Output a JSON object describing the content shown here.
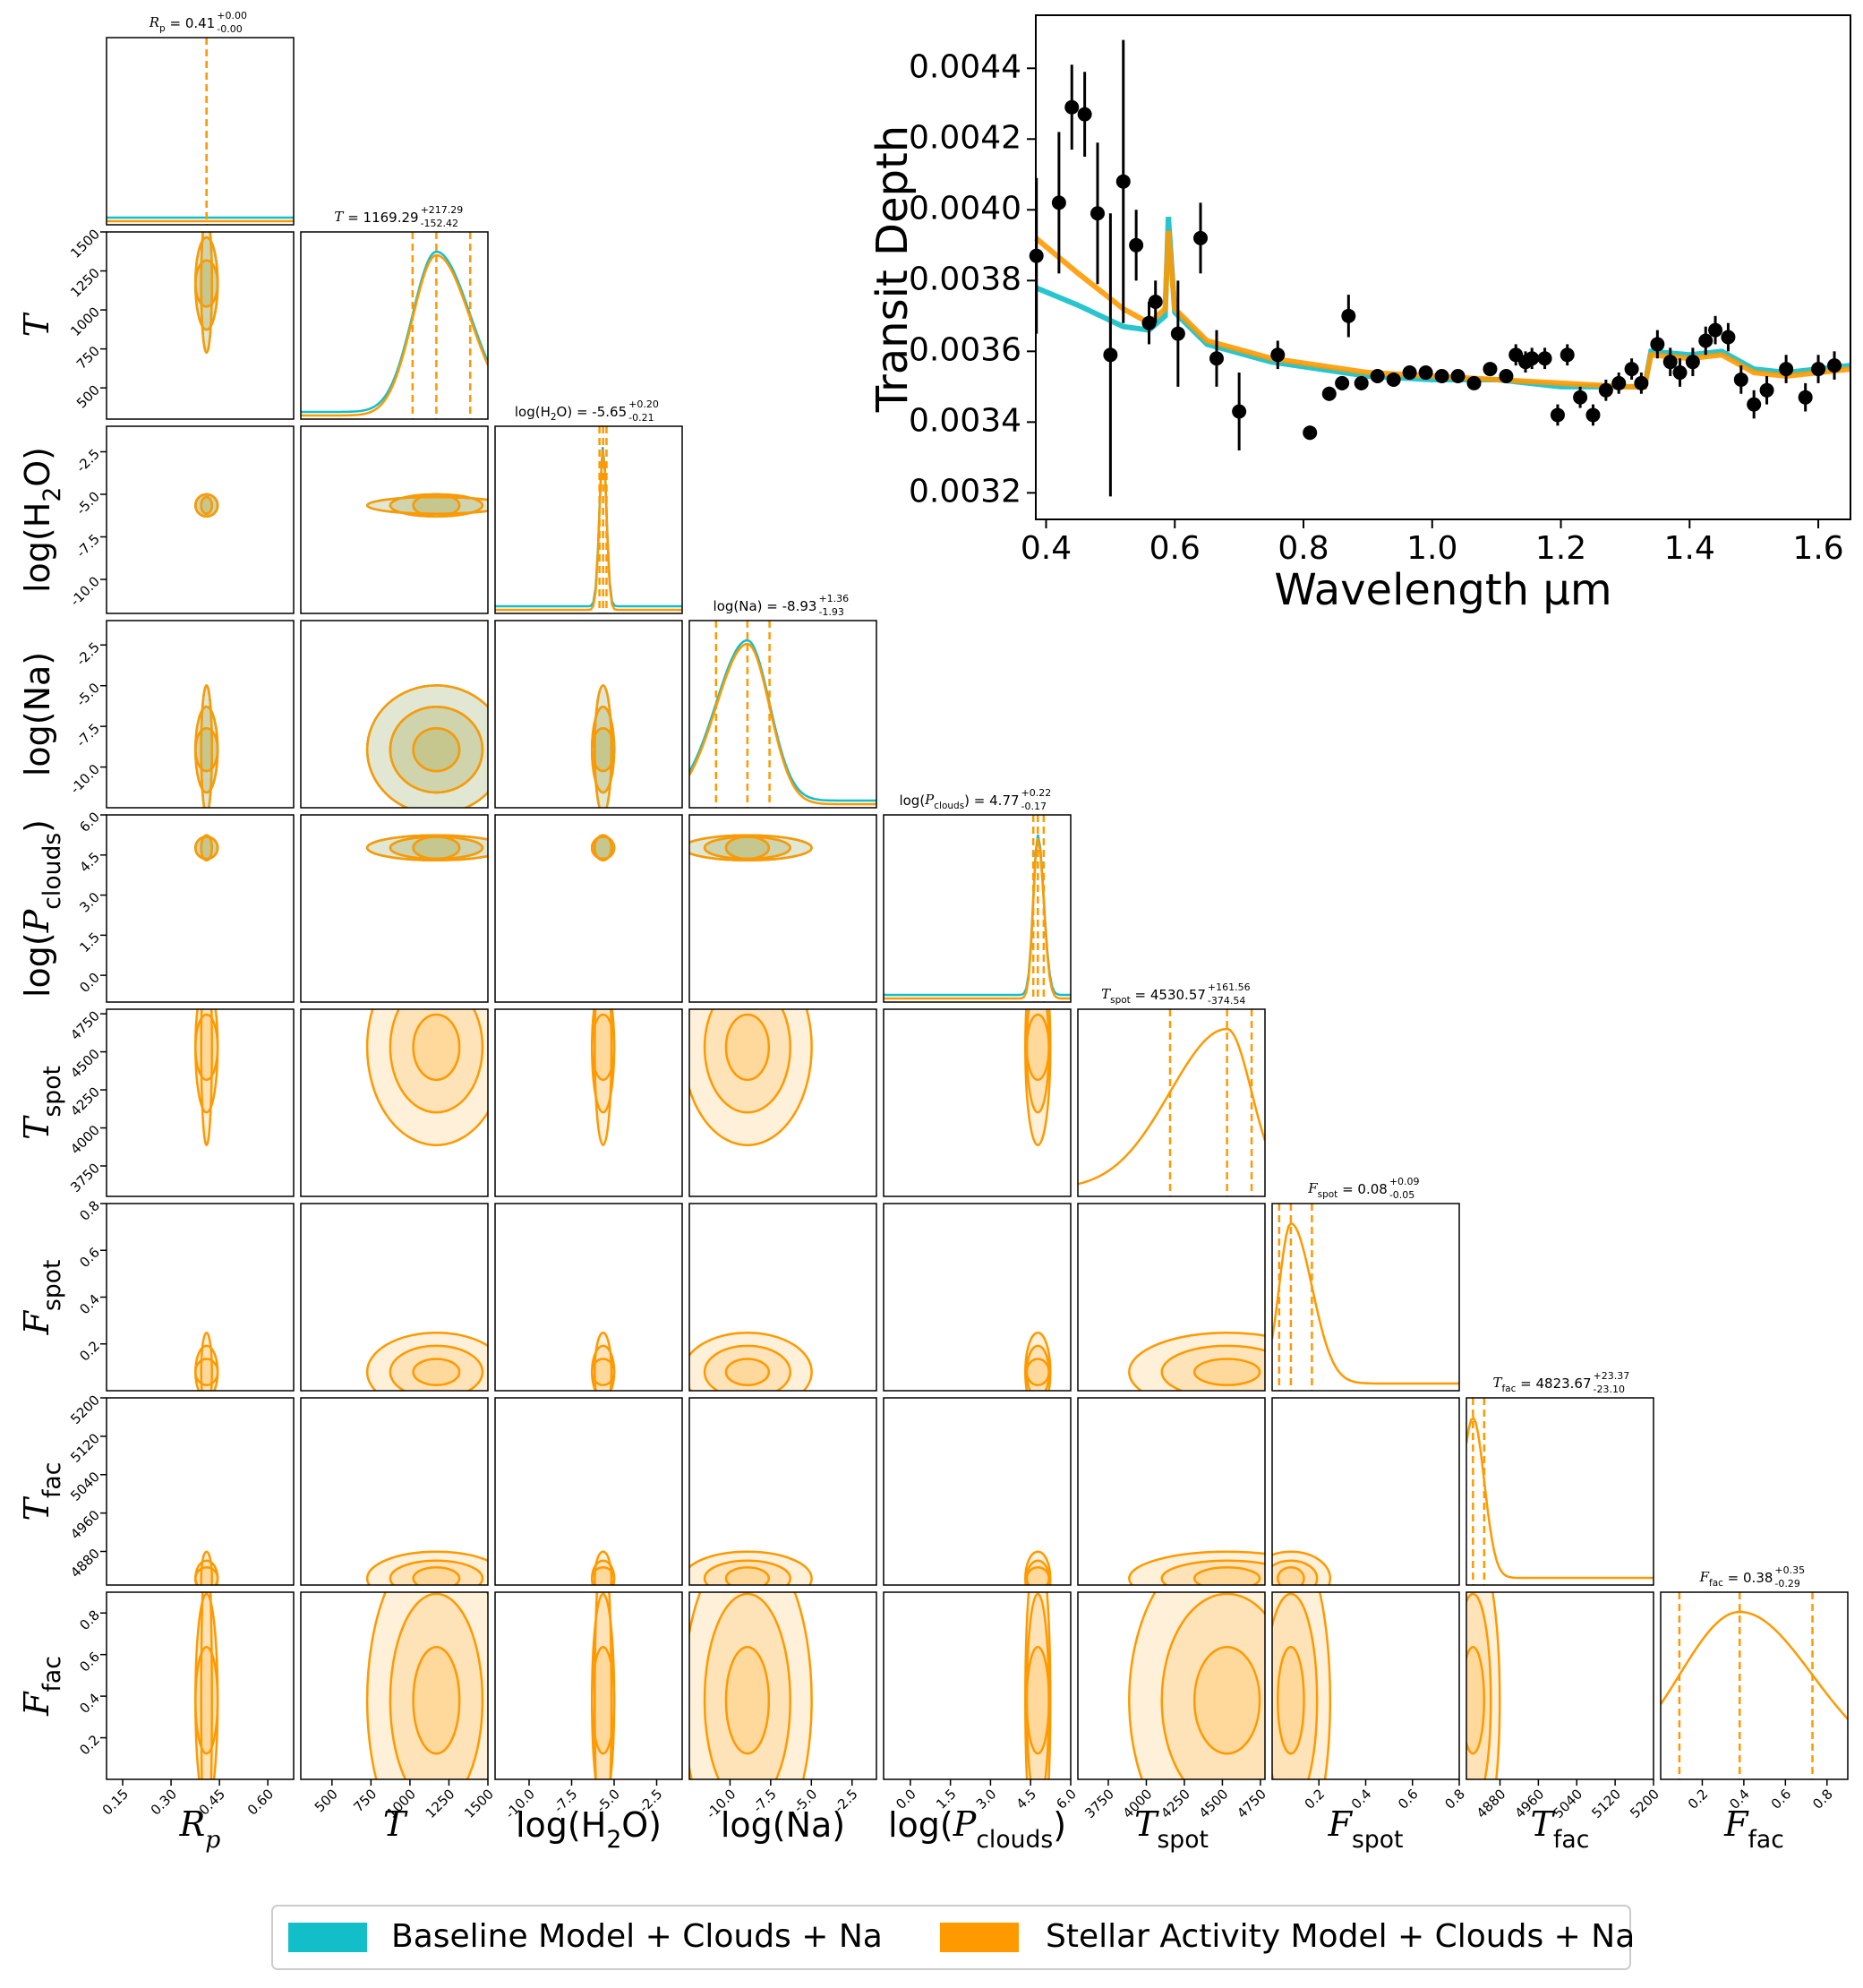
{
  "chart_data": [
    {
      "type": "line",
      "y_label": "Transit Depth",
      "x_label": "Wavelength μm",
      "xlim": [
        0.384,
        1.65
      ],
      "ylim": [
        0.003125,
        0.00455
      ],
      "xticks": [
        0.4,
        0.6,
        0.8,
        {
          "value": 1.0,
          "label": "1.0"
        },
        1.2,
        1.4,
        1.6
      ],
      "yticks": [
        0.0032,
        0.0034,
        0.0036,
        0.0038,
        {
          "value": 0.004,
          "label": "0.0040"
        },
        0.0042,
        0.0044
      ],
      "series": [
        {
          "name": "Baseline Model + Clouds + Na",
          "color": "#12bfc9",
          "x": [
            0.384,
            0.45,
            0.52,
            0.56,
            0.585,
            0.59,
            0.6,
            0.65,
            0.75,
            0.9,
            1.0,
            1.1,
            1.2,
            1.3,
            1.33,
            1.34,
            1.4,
            1.45,
            1.5,
            1.55,
            1.65
          ],
          "values": [
            0.00378,
            0.00373,
            0.00367,
            0.00366,
            0.0037,
            0.00398,
            0.00371,
            0.00362,
            0.00357,
            0.00353,
            0.00352,
            0.00352,
            0.0035,
            0.0035,
            0.0035,
            0.0036,
            0.00359,
            0.0036,
            0.00355,
            0.00354,
            0.00356
          ]
        },
        {
          "name": "Stellar Activity Model + Clouds + Na",
          "color": "#ff9900",
          "x": [
            0.384,
            0.45,
            0.52,
            0.56,
            0.585,
            0.59,
            0.6,
            0.65,
            0.75,
            0.9,
            1.0,
            1.1,
            1.2,
            1.3,
            1.33,
            1.34,
            1.4,
            1.45,
            1.5,
            1.55,
            1.65
          ],
          "values": [
            0.00392,
            0.00382,
            0.00372,
            0.00368,
            0.00372,
            0.00394,
            0.00372,
            0.00363,
            0.00358,
            0.00354,
            0.00353,
            0.00352,
            0.00351,
            0.0035,
            0.0035,
            0.00359,
            0.00358,
            0.00359,
            0.00354,
            0.00353,
            0.00355
          ]
        }
      ],
      "observations": {
        "color": "#000000",
        "x": [
          0.385,
          0.42,
          0.44,
          0.46,
          0.48,
          0.5,
          0.52,
          0.54,
          0.56,
          0.57,
          0.605,
          0.64,
          0.665,
          0.7,
          0.76,
          0.81,
          0.84,
          0.86,
          0.87,
          0.89,
          0.915,
          0.94,
          0.965,
          0.99,
          1.015,
          1.04,
          1.065,
          1.09,
          1.115,
          1.13,
          1.145,
          1.155,
          1.175,
          1.195,
          1.21,
          1.23,
          1.25,
          1.27,
          1.29,
          1.31,
          1.325,
          1.35,
          1.37,
          1.385,
          1.405,
          1.425,
          1.44,
          1.46,
          1.48,
          1.5,
          1.52,
          1.55,
          1.58,
          1.6,
          1.625
        ],
        "values": [
          0.00387,
          0.00402,
          0.00429,
          0.00427,
          0.00399,
          0.00359,
          0.00408,
          0.0039,
          0.00368,
          0.00374,
          0.00365,
          0.00392,
          0.00358,
          0.00343,
          0.00359,
          0.00337,
          0.00348,
          0.00351,
          0.0037,
          0.00351,
          0.00353,
          0.00352,
          0.00354,
          0.00354,
          0.00353,
          0.00353,
          0.00351,
          0.00355,
          0.00353,
          0.00359,
          0.00357,
          0.00358,
          0.00358,
          0.00342,
          0.00359,
          0.00347,
          0.00342,
          0.00349,
          0.00351,
          0.00355,
          0.00351,
          0.00362,
          0.00357,
          0.00354,
          0.00357,
          0.00363,
          0.00366,
          0.00364,
          0.00352,
          0.00345,
          0.00349,
          0.00355,
          0.00347,
          0.00355,
          0.00356
        ],
        "errors": [
          0.00022,
          0.0002,
          0.00012,
          0.00012,
          0.0002,
          0.0004,
          0.0004,
          0.0001,
          6e-05,
          6e-05,
          0.00015,
          0.0001,
          8e-05,
          0.00011,
          4e-05,
          2e-05,
          2e-05,
          2e-05,
          6e-05,
          2e-05,
          2e-05,
          2e-05,
          1e-05,
          1e-05,
          1e-05,
          1e-05,
          1e-05,
          1e-05,
          1e-05,
          3e-05,
          3e-05,
          3e-05,
          3e-05,
          3e-05,
          3e-05,
          3e-05,
          3e-05,
          3e-05,
          3e-05,
          3e-05,
          3e-05,
          4e-05,
          4e-05,
          4e-05,
          4e-05,
          4e-05,
          4e-05,
          4e-05,
          4e-05,
          4e-05,
          4e-05,
          4e-05,
          4e-05,
          4e-05,
          4e-05
        ]
      }
    },
    {
      "type": "corner",
      "parameters": [
        {
          "label": [
            {
              "text": "R",
              "style": "italic"
            },
            {
              "text": "p",
              "style": "sub-italic"
            }
          ],
          "title": [
            {
              "text": "R",
              "style": "italic"
            },
            {
              "text": "p",
              "style": "sub"
            },
            {
              "text": " = 0.41"
            }
          ],
          "median": 0.41,
          "upper": "+0.00",
          "lower": "-0.00",
          "lim": [
            0.1,
            0.68
          ],
          "ticks": [
            0.15,
            {
              "value": 0.3,
              "label": "0.30"
            },
            0.45,
            {
              "value": 0.6,
              "label": "0.60"
            }
          ],
          "colors": [
            "#12bfc9",
            "#ff9900"
          ]
        },
        {
          "label": [
            {
              "text": "T",
              "style": "italic"
            }
          ],
          "title": [
            {
              "text": "T",
              "style": "italic"
            },
            {
              "text": " = 1169.29"
            }
          ],
          "median": 1169.29,
          "upper": "+217.29",
          "lower": "-152.42",
          "lim": [
            300,
            1500
          ],
          "ticks": [
            500,
            750,
            1000,
            1250,
            1500
          ],
          "colors": [
            "#12bfc9",
            "#ff9900"
          ]
        },
        {
          "label": [
            {
              "text": "log(H"
            },
            {
              "text": "2",
              "style": "sub"
            },
            {
              "text": "O)"
            }
          ],
          "title": [
            {
              "text": "log(H"
            },
            {
              "text": "2",
              "style": "sub"
            },
            {
              "text": "O) = -5.65"
            }
          ],
          "median": -5.65,
          "upper": "+0.20",
          "lower": "-0.21",
          "lim": [
            -12,
            -1
          ],
          "ticks": [
            {
              "value": -10,
              "label": "-10.0"
            },
            -7.5,
            {
              "value": -5,
              "label": "-5.0"
            },
            -2.5
          ],
          "colors": [
            "#12bfc9",
            "#ff9900"
          ]
        },
        {
          "label": [
            {
              "text": "log(Na)"
            }
          ],
          "title": [
            {
              "text": "log(Na) = -8.93"
            }
          ],
          "median": -8.93,
          "upper": "+1.36",
          "lower": "-1.93",
          "lim": [
            -12.5,
            -1
          ],
          "ticks": [
            {
              "value": -10,
              "label": "-10.0"
            },
            -7.5,
            {
              "value": -5,
              "label": "-5.0"
            },
            -2.5
          ],
          "colors": [
            "#12bfc9",
            "#ff9900"
          ]
        },
        {
          "label": [
            {
              "text": "log("
            },
            {
              "text": "P",
              "style": "italic"
            },
            {
              "text": "clouds",
              "style": "sub"
            },
            {
              "text": ")"
            }
          ],
          "title": [
            {
              "text": "log("
            },
            {
              "text": "P",
              "style": "italic"
            },
            {
              "text": "clouds",
              "style": "sub"
            },
            {
              "text": ") = 4.77"
            }
          ],
          "median": 4.77,
          "upper": "+0.22",
          "lower": "-0.17",
          "lim": [
            -1,
            6
          ],
          "ticks": [
            {
              "value": 0,
              "label": "0.0"
            },
            1.5,
            {
              "value": 3,
              "label": "3.0"
            },
            4.5,
            {
              "value": 6,
              "label": "6.0"
            }
          ],
          "colors": [
            "#12bfc9",
            "#ff9900"
          ]
        },
        {
          "label": [
            {
              "text": "T",
              "style": "italic"
            },
            {
              "text": "spot",
              "style": "sub"
            }
          ],
          "title": [
            {
              "text": "T",
              "style": "italic"
            },
            {
              "text": "spot",
              "style": "sub"
            },
            {
              "text": " = 4530.57"
            }
          ],
          "median": 4530.57,
          "upper": "+161.56",
          "lower": "-374.54",
          "lim": [
            3550,
            4780
          ],
          "ticks": [
            3750,
            4000,
            4250,
            4500,
            4750
          ],
          "colors": [
            "#ff9900"
          ]
        },
        {
          "label": [
            {
              "text": "F",
              "style": "italic"
            },
            {
              "text": "spot",
              "style": "sub"
            }
          ],
          "title": [
            {
              "text": "F",
              "style": "italic"
            },
            {
              "text": "spot",
              "style": "sub"
            },
            {
              "text": " = 0.08"
            }
          ],
          "median": 0.08,
          "upper": "+0.09",
          "lower": "-0.05",
          "lim": [
            0,
            0.8
          ],
          "ticks": [
            0.2,
            0.4,
            0.6,
            0.8
          ],
          "colors": [
            "#ff9900"
          ]
        },
        {
          "label": [
            {
              "text": "T",
              "style": "italic"
            },
            {
              "text": "fac",
              "style": "sub"
            }
          ],
          "title": [
            {
              "text": "T",
              "style": "italic"
            },
            {
              "text": "fac",
              "style": "sub"
            },
            {
              "text": " = 4823.67"
            }
          ],
          "median": 4823.67,
          "upper": "+23.37",
          "lower": "-23.10",
          "lim": [
            4810,
            5200
          ],
          "ticks": [
            4880,
            4960,
            5040,
            5120,
            5200
          ],
          "colors": [
            "#ff9900"
          ]
        },
        {
          "label": [
            {
              "text": "F",
              "style": "italic"
            },
            {
              "text": "fac",
              "style": "sub"
            }
          ],
          "title": [
            {
              "text": "F",
              "style": "italic"
            },
            {
              "text": "fac",
              "style": "sub"
            },
            {
              "text": " = 0.38"
            }
          ],
          "median": 0.38,
          "upper": "+0.35",
          "lower": "-0.29",
          "lim": [
            0,
            0.9
          ],
          "ticks": [
            0.2,
            0.4,
            0.6,
            0.8
          ],
          "colors": [
            "#ff9900"
          ]
        }
      ]
    }
  ]
}
